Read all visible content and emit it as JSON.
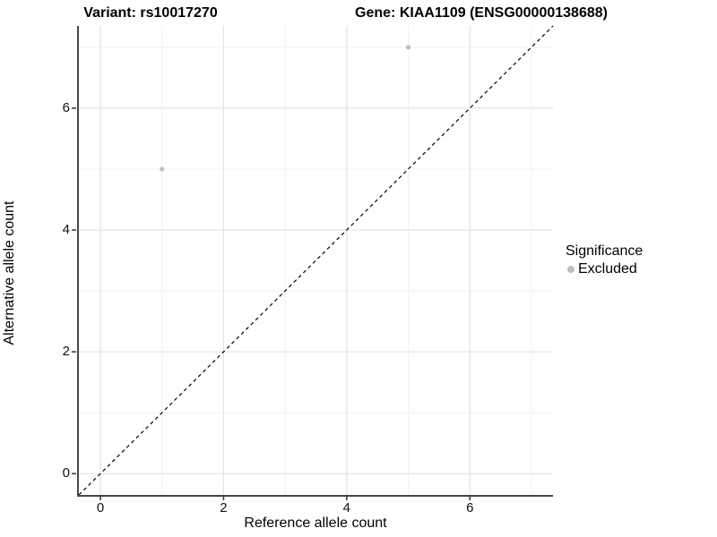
{
  "titles": {
    "variant": "Variant: rs10017270",
    "gene": "Gene: KIAA1109 (ENSG00000138688)"
  },
  "legend": {
    "title": "Significance",
    "items": [
      {
        "label": "Excluded",
        "color": "#bdbdbd"
      }
    ]
  },
  "axes": {
    "x_label": "Reference allele count",
    "y_label": "Alternative allele count"
  },
  "colors": {
    "background": "#ffffff",
    "grid_major": "#e3e3e3",
    "grid_minor": "#f0f0f0",
    "axis_line": "#464646",
    "tick_mark": "#333333",
    "point": "#bebebe",
    "identity_line": "#000000",
    "text": "#000000"
  },
  "chart_data": {
    "type": "scatter",
    "title": "Variant: rs10017270 | Gene: KIAA1109 (ENSG00000138688)",
    "xlabel": "Reference allele count",
    "ylabel": "Alternative allele count",
    "xlim": [
      -0.35,
      7.35
    ],
    "ylim": [
      -0.35,
      7.35
    ],
    "x_ticks": [
      0,
      2,
      4,
      6
    ],
    "y_ticks": [
      0,
      2,
      4,
      6
    ],
    "x_minor_gridlines": [
      1,
      3,
      5,
      7
    ],
    "y_minor_gridlines": [
      1,
      3,
      5,
      7
    ],
    "grid": true,
    "legend_position": "right",
    "series": [
      {
        "name": "Excluded",
        "color": "#bebebe",
        "points": [
          [
            1,
            5
          ],
          [
            5,
            7
          ]
        ]
      }
    ],
    "reference_line": {
      "type": "identity y=x",
      "from": [
        -0.35,
        -0.35
      ],
      "to": [
        7.35,
        7.35
      ],
      "style": "dashed",
      "color": "#000000"
    }
  }
}
